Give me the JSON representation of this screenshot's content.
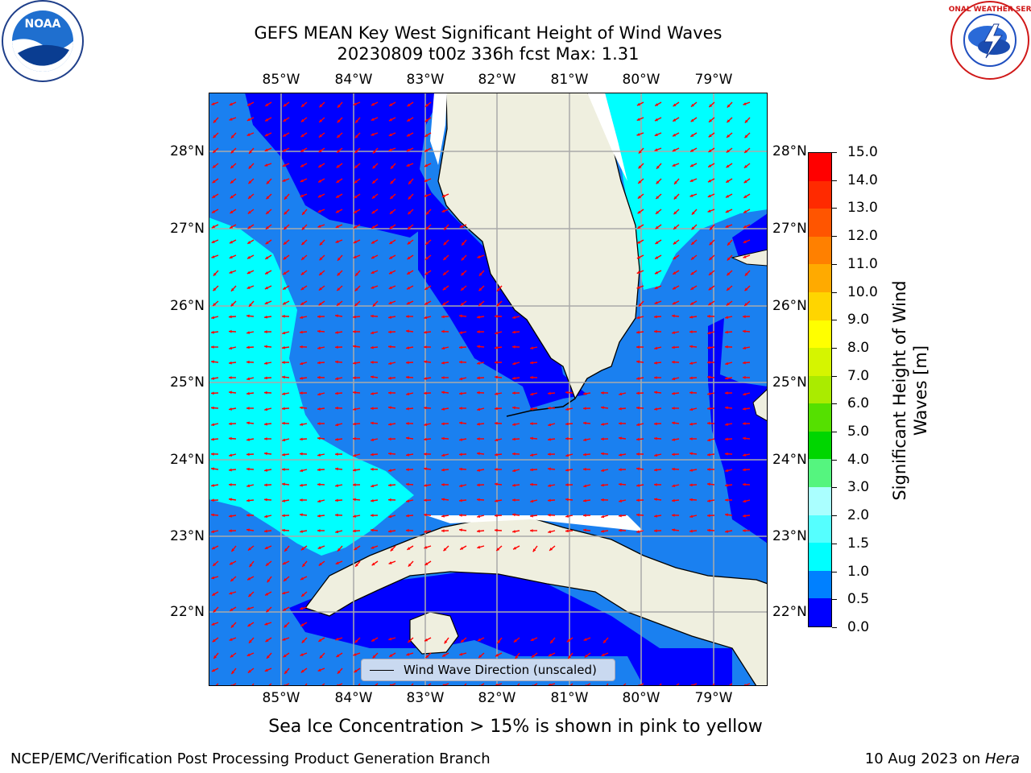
{
  "title": {
    "line1": "GEFS MEAN Key West Significant Height of Wind Waves",
    "line2": "20230809 t00z 336h fcst   Max: 1.31"
  },
  "axes": {
    "lon_labels": [
      "85°W",
      "84°W",
      "83°W",
      "82°W",
      "81°W",
      "80°W",
      "79°W"
    ],
    "lat_labels": [
      "28°N",
      "27°N",
      "26°N",
      "25°N",
      "24°N",
      "23°N",
      "22°N"
    ]
  },
  "legend": {
    "label": "Wind Wave Direction (unscaled)"
  },
  "colorbar": {
    "label": "Significant Height of Wind Waves [m]",
    "ticks": [
      "15.0",
      "14.0",
      "13.0",
      "12.0",
      "11.0",
      "10.0",
      "9.0",
      "8.0",
      "7.0",
      "6.0",
      "5.0",
      "4.0",
      "3.0",
      "2.0",
      "1.5",
      "1.0",
      "0.5",
      "0.0"
    ],
    "colors": [
      "#ff0000",
      "#ff2a00",
      "#ff5500",
      "#ff8000",
      "#ffaa00",
      "#ffd500",
      "#ffff00",
      "#d5f500",
      "#aaeb00",
      "#55e000",
      "#00d600",
      "#55f57f",
      "#aaffff",
      "#55ffff",
      "#00ffff",
      "#0080ff",
      "#0000ff"
    ]
  },
  "map_colors": {
    "land": "#efefdf",
    "ocean_mid": "#1a80f0",
    "ocean_deep": "#0000ff",
    "ocean_light": "#00ffff",
    "arrow": "#ff0000",
    "grid": "#aaaaaa"
  },
  "logos": {
    "left": "NOAA",
    "right": "NATIONAL WEATHER SERVICE"
  },
  "footer": {
    "note": "Sea Ice Concentration > 15% is shown in pink to yellow",
    "left": "NCEP/EMC/Verification Post Processing Product Generation Branch",
    "right_date": "10 Aug 2023 on ",
    "right_host": "Hera"
  }
}
